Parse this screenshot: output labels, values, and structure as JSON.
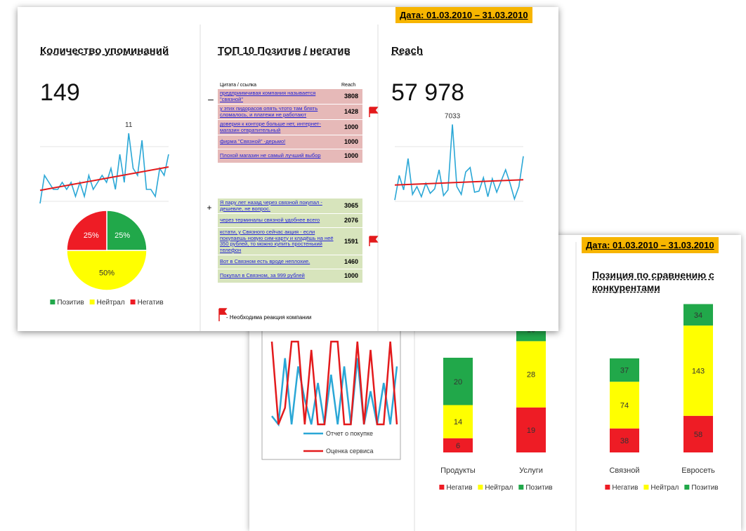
{
  "front": {
    "date": "Дата: 01.03.2010 – 31.03.2010",
    "mentions": {
      "title": "Количество упоминаний",
      "total": 149
    },
    "top10": {
      "title": "ТОП 10 Позитив / негатив",
      "header": [
        "Цитата / ссылка",
        "Reach"
      ],
      "negative_sign": "–",
      "positive_sign": "+",
      "negative": [
        {
          "text": "предприимчивая компания называется \"связной\"",
          "reach": 3808,
          "flag": false
        },
        {
          "text": "у этих пидорасов опять чтото там блять сломалось, и платежи не работают",
          "reach": 1428,
          "flag": true
        },
        {
          "text": "доверия к конторе больше нет, интернет-магазин отвратительный",
          "reach": 1000,
          "flag": false
        },
        {
          "text": "фирма \"Связной\" -дерьмо!",
          "reach": 1000,
          "flag": false
        },
        {
          "text": "Плохой магазин не самый лучший выбор",
          "reach": 1000,
          "flag": false
        }
      ],
      "positive": [
        {
          "text": "Я пару лет назад через связной покупал - дешевле, не вопрос.",
          "reach": 3065,
          "flag": false
        },
        {
          "text": "через терминалы связной удобнее всего",
          "reach": 2076,
          "flag": false
        },
        {
          "text": "кстати, у Связного сейчас акция - если покупаешь новую сим-карту и кладёшь на неё 350 рублей, то можно купить простенький телефон",
          "reach": 1591,
          "flag": true
        },
        {
          "text": "Вот в Связном есть вроде неплохие.",
          "reach": 1460,
          "flag": false
        },
        {
          "text": "Покупал в Связном, за 999 рублей",
          "reach": 1000,
          "flag": false
        }
      ],
      "flag_note": "- Необходима реакция компании"
    },
    "reach": {
      "title": "Reach",
      "total": "57 978"
    }
  },
  "back": {
    "date": "Дата: 01.03.2010 – 31.03.2010",
    "competitors_title": "Позиция по сравнению с конкурентами"
  },
  "chart_data": [
    {
      "type": "line",
      "values": [
        1,
        5,
        4,
        3,
        3,
        4,
        3,
        4,
        2,
        4,
        2,
        5,
        3,
        4,
        5,
        4,
        6,
        3,
        8,
        4,
        11,
        6,
        5,
        10,
        3,
        3,
        2,
        6,
        5,
        8
      ],
      "value_labels": [
        null,
        null,
        null,
        null,
        null,
        null,
        null,
        null,
        null,
        null,
        null,
        null,
        null,
        null,
        null,
        null,
        null,
        null,
        null,
        null,
        "11",
        null,
        null,
        null,
        null,
        null,
        null,
        null,
        null,
        null
      ],
      "color": "#2aa7d6",
      "trend": true,
      "trend_color": "#e31a1c",
      "ylim": [
        0,
        12
      ]
    },
    {
      "type": "pie",
      "categories": [
        "Позитив",
        "Нейтрал",
        "Негатив"
      ],
      "values": [
        25,
        50,
        25
      ],
      "value_labels": [
        "25%",
        "50%",
        "25%"
      ],
      "colors": [
        "#21a84a",
        "#ffff00",
        "#ee1c25"
      ]
    },
    {
      "type": "line",
      "values": [
        300,
        2500,
        1200,
        4000,
        800,
        1500,
        600,
        1800,
        900,
        1300,
        3000,
        700,
        1200,
        7033,
        1500,
        800,
        2800,
        3200,
        1000,
        1100,
        2300,
        600,
        2200,
        1000,
        2000,
        3000,
        1800,
        400,
        1500,
        4200
      ],
      "value_labels": [
        null,
        null,
        null,
        null,
        null,
        null,
        null,
        null,
        null,
        null,
        null,
        null,
        null,
        "7033",
        null,
        null,
        null,
        null,
        null,
        null,
        null,
        null,
        null,
        null,
        null,
        null,
        null,
        null,
        null,
        null
      ],
      "color": "#2aa7d6",
      "trend": true,
      "trend_color": "#e31a1c",
      "ylim": [
        0,
        7500
      ]
    },
    {
      "type": "line",
      "series": [
        {
          "name": "Отчет о покупке",
          "color": "#2aa7d6",
          "values": [
            0.1,
            0,
            0.8,
            0,
            0.7,
            0.3,
            0,
            0.5,
            0,
            0.6,
            0,
            0.7,
            0,
            0.8,
            0,
            0.4,
            0,
            0.5,
            0,
            0.7
          ]
        },
        {
          "name": "Оценка сервиса",
          "color": "#e31a1c",
          "values": [
            1,
            0,
            0.2,
            1,
            1,
            0,
            0.9,
            0,
            0,
            1,
            1,
            0,
            0,
            1,
            0,
            0.9,
            0,
            0,
            1,
            0
          ]
        }
      ],
      "ylim": [
        0,
        1
      ]
    },
    {
      "type": "bar",
      "stacked": true,
      "categories": [
        "Продукты",
        "Услуги"
      ],
      "series": [
        {
          "name": "Негатив",
          "color": "#ee1c25",
          "values": [
            6,
            19
          ]
        },
        {
          "name": "Нейтрал",
          "color": "#ffff00",
          "values": [
            14,
            28
          ]
        },
        {
          "name": "Позитив",
          "color": "#21a84a",
          "values": [
            20,
            10
          ]
        }
      ],
      "ylim": [
        0,
        60
      ]
    },
    {
      "type": "bar",
      "stacked": true,
      "categories": [
        "Связной",
        "Евросеть"
      ],
      "series": [
        {
          "name": "Негатив",
          "color": "#ee1c25",
          "values": [
            38,
            58
          ]
        },
        {
          "name": "Нейтрал",
          "color": "#ffff00",
          "values": [
            74,
            143
          ]
        },
        {
          "name": "Позитив",
          "color": "#21a84a",
          "values": [
            37,
            34
          ]
        }
      ],
      "ylim": [
        0,
        250
      ]
    }
  ]
}
